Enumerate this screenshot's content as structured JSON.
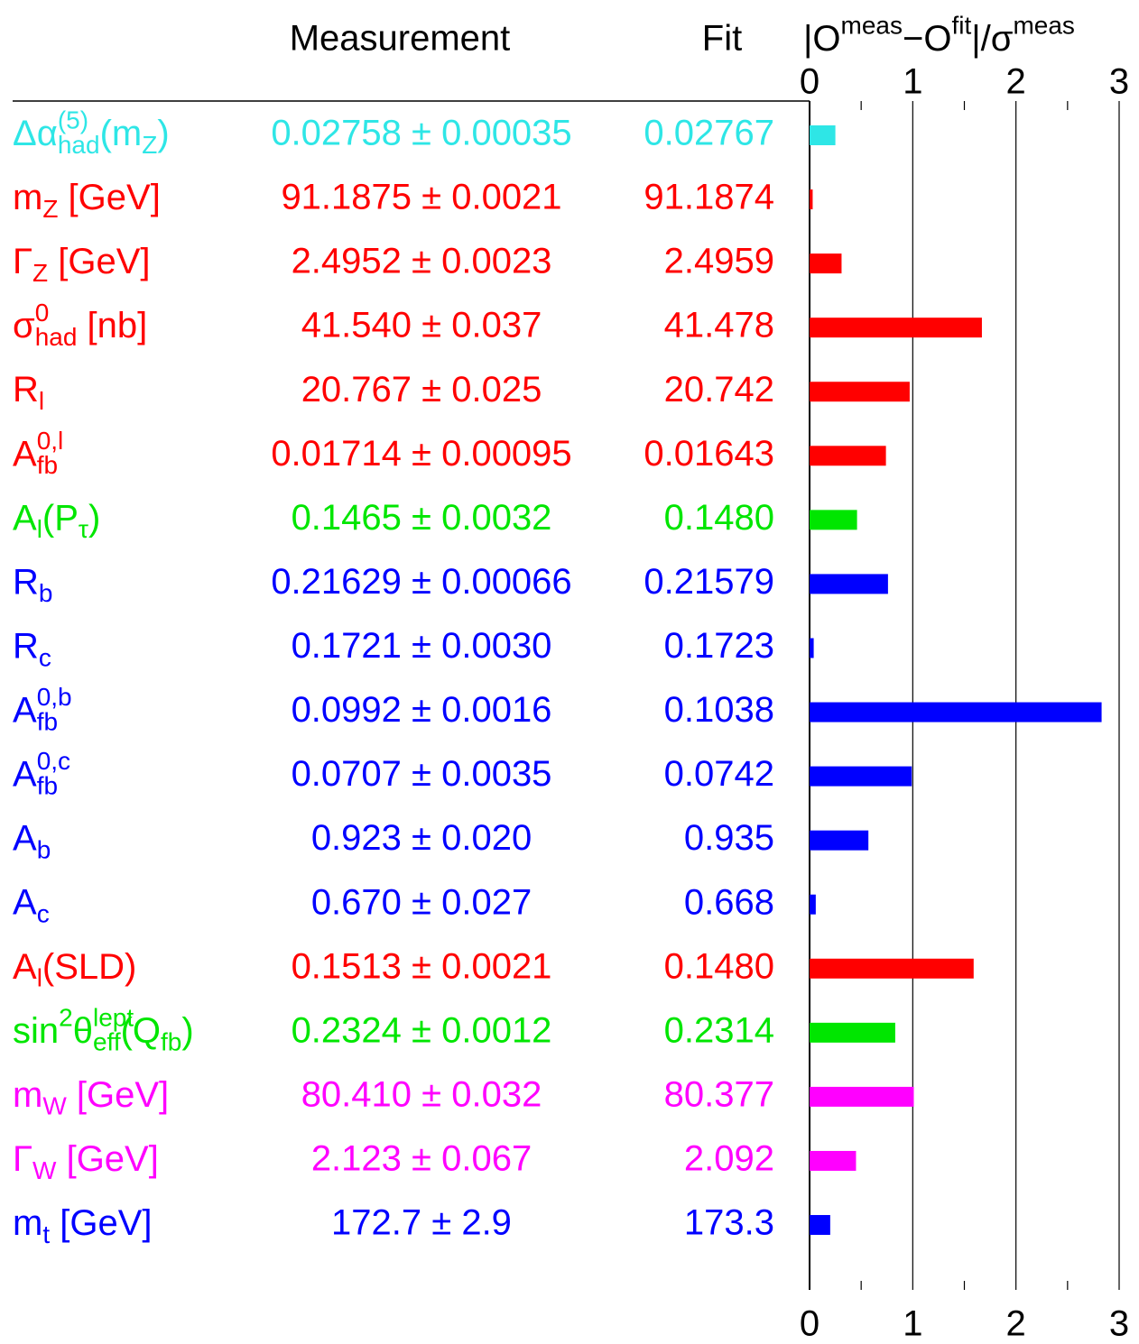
{
  "chart_data": {
    "type": "bar",
    "orientation": "horizontal",
    "measurement_header": "Measurement",
    "fit_header": "Fit",
    "title": [
      {
        "text": "|O"
      },
      {
        "sup": "meas"
      },
      {
        "text": "−O"
      },
      {
        "sup": "fit"
      },
      {
        "text": "|/σ"
      },
      {
        "sup": "meas"
      }
    ],
    "labels": [
      [
        {
          "text": "Δα"
        },
        {
          "sup": "(5)",
          "sub": "had"
        },
        {
          "text": "(m"
        },
        {
          "sub": "Z"
        },
        {
          "text": ")"
        }
      ],
      [
        {
          "text": "m"
        },
        {
          "sub": "Z"
        },
        {
          "text": " [GeV]"
        }
      ],
      [
        {
          "text": "Γ"
        },
        {
          "sub": "Z"
        },
        {
          "text": " [GeV]"
        }
      ],
      [
        {
          "text": "σ"
        },
        {
          "sup": "0",
          "sub": "had"
        },
        {
          "text": " [nb]"
        }
      ],
      [
        {
          "text": "R"
        },
        {
          "sub": "l"
        }
      ],
      [
        {
          "text": "A"
        },
        {
          "sup": "0,l",
          "sub": "fb"
        }
      ],
      [
        {
          "text": "A"
        },
        {
          "sub": "l"
        },
        {
          "text": "(P"
        },
        {
          "sub": "τ"
        },
        {
          "text": ")"
        }
      ],
      [
        {
          "text": "R"
        },
        {
          "sub": "b"
        }
      ],
      [
        {
          "text": "R"
        },
        {
          "sub": "c"
        }
      ],
      [
        {
          "text": "A"
        },
        {
          "sup": "0,b",
          "sub": "fb"
        }
      ],
      [
        {
          "text": "A"
        },
        {
          "sup": "0,c",
          "sub": "fb"
        }
      ],
      [
        {
          "text": "A"
        },
        {
          "sub": "b"
        }
      ],
      [
        {
          "text": "A"
        },
        {
          "sub": "c"
        }
      ],
      [
        {
          "text": "A"
        },
        {
          "sub": "l"
        },
        {
          "text": "(SLD)"
        }
      ],
      [
        {
          "text": "sin"
        },
        {
          "sup": "2"
        },
        {
          "text": "θ"
        },
        {
          "sup": "lept",
          "sub": "eff"
        },
        {
          "text": "(Q"
        },
        {
          "sub": "fb"
        },
        {
          "text": ")"
        }
      ],
      [
        {
          "text": "m"
        },
        {
          "sub": "W"
        },
        {
          "text": " [GeV]"
        }
      ],
      [
        {
          "text": "Γ"
        },
        {
          "sub": "W"
        },
        {
          "text": " [GeV]"
        }
      ],
      [
        {
          "text": "m"
        },
        {
          "sub": "t"
        },
        {
          "text": " [GeV]"
        }
      ]
    ],
    "measurements": [
      "0.02758 ± 0.00035",
      "91.1875 ± 0.0021",
      "2.4952 ± 0.0023",
      "41.540 ± 0.037",
      "20.767 ± 0.025",
      "0.01714 ± 0.00095",
      "0.1465 ± 0.0032",
      "0.21629 ± 0.00066",
      "0.1721 ± 0.0030",
      "0.0992 ± 0.0016",
      "0.0707 ± 0.0035",
      "0.923 ± 0.020",
      "0.670 ± 0.027",
      "0.1513 ± 0.0021",
      "0.2324 ± 0.0012",
      "80.410 ± 0.032",
      "2.123 ± 0.067",
      "172.7 ± 2.9"
    ],
    "fits": [
      "0.02767",
      "91.1874",
      "2.4959",
      "41.478",
      "20.742",
      "0.01643",
      "0.1480",
      "0.21579",
      "0.1723",
      "0.1038",
      "0.0742",
      "0.935",
      "0.668",
      "0.1480",
      "0.2314",
      "80.377",
      "2.092",
      "173.3"
    ],
    "values": [
      0.25,
      0.03,
      0.31,
      1.67,
      0.97,
      0.74,
      0.46,
      0.76,
      0.04,
      2.83,
      0.99,
      0.57,
      0.06,
      1.59,
      0.83,
      1.01,
      0.45,
      0.2
    ],
    "colors": [
      "#2ee6e6",
      "#ff0000",
      "#ff0000",
      "#ff0000",
      "#ff0000",
      "#ff0000",
      "#00e600",
      "#0000ff",
      "#0000ff",
      "#0000ff",
      "#0000ff",
      "#0000ff",
      "#0000ff",
      "#ff0000",
      "#00e600",
      "#ff00ff",
      "#ff00ff",
      "#0000ff"
    ],
    "xlim": [
      0,
      3
    ],
    "xticks": [
      0,
      1,
      2,
      3
    ],
    "xminorticks": [
      0.5,
      1.5,
      2.5
    ],
    "grid": true
  }
}
